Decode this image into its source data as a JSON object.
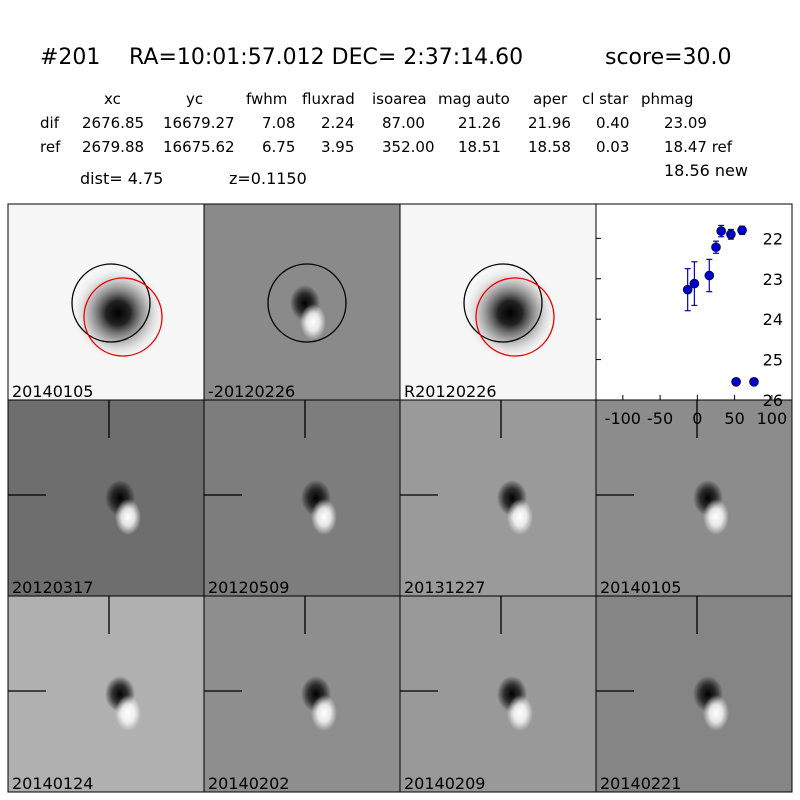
{
  "header": {
    "id": "#201",
    "coords": "RA=10:01:57.012 DEC= 2:37:14.60",
    "score": "score=30.0"
  },
  "table": {
    "columns": [
      "xc",
      "yc",
      "fwhm",
      "fluxrad",
      "isoarea",
      "mag auto",
      "aper",
      "cl star",
      "phmag"
    ],
    "rows": [
      [
        "dif",
        "2676.85",
        "16679.27",
        "7.08",
        "2.24",
        "87.00",
        "21.26",
        "21.96",
        "0.40",
        "23.09"
      ],
      [
        "ref",
        "2679.88",
        "16675.62",
        "6.75",
        "3.95",
        "352.00",
        "18.51",
        "18.58",
        "0.03",
        "18.47 ref"
      ]
    ],
    "extra": "18.56 new"
  },
  "dist": "dist=  4.75",
  "redshift": "z=0.1150",
  "stamps": [
    {
      "label": "20140105"
    },
    {
      "label": "-20120226"
    },
    {
      "label": "R20120226"
    },
    {
      "label": "20120317"
    },
    {
      "label": "20120509"
    },
    {
      "label": "20131227"
    },
    {
      "label": "20140105",
      "color": "#ff0000"
    },
    {
      "label": "20140124"
    },
    {
      "label": "20140202"
    },
    {
      "label": "20140209"
    },
    {
      "label": "20140221"
    }
  ],
  "chart_data": {
    "type": "scatter",
    "invert_y": true,
    "xlim": [
      -136,
      127
    ],
    "ylim": [
      21.15,
      26
    ],
    "xticks": [
      -100,
      -50,
      0,
      50,
      100
    ],
    "yticks": [
      22,
      23,
      24,
      25,
      26
    ],
    "series": [
      {
        "color": "#0000cc",
        "x": [
          -13,
          -4,
          16,
          25,
          32,
          45,
          60,
          52,
          76
        ],
        "values": [
          23.27,
          23.12,
          22.92,
          22.22,
          21.82,
          21.9,
          21.8,
          25.55,
          25.55
        ],
        "errors": [
          0.52,
          0.54,
          0.4,
          0.15,
          0.14,
          0.12,
          0.1,
          0.05,
          0.05
        ]
      }
    ]
  }
}
